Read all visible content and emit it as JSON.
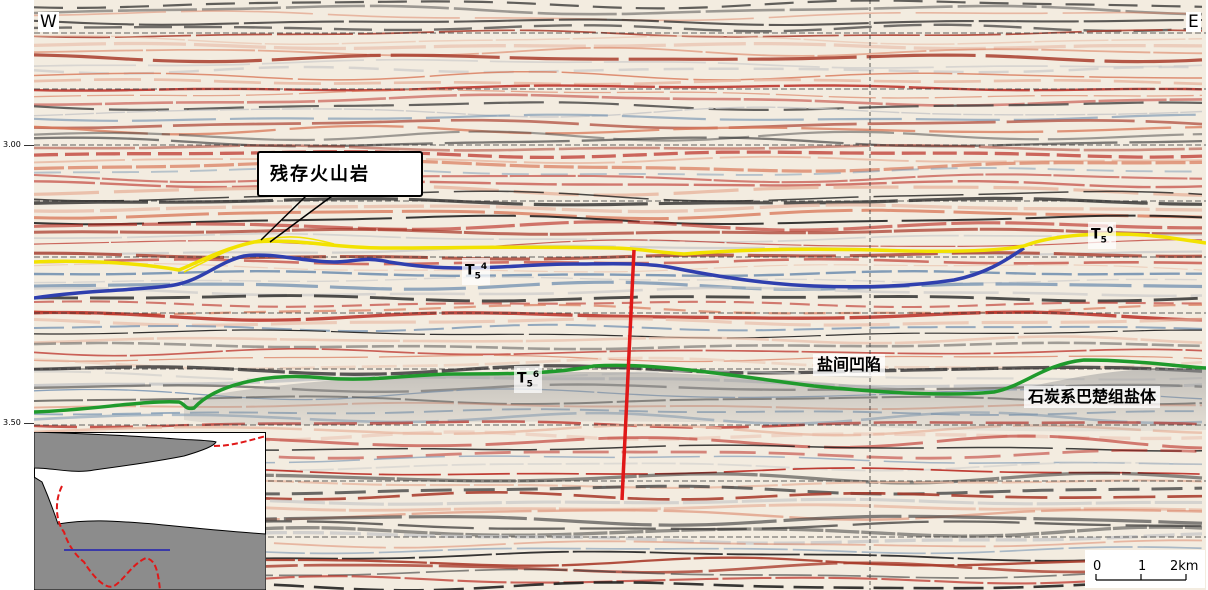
{
  "figure": {
    "direction_left": "W",
    "direction_right": "E",
    "depth_ticks": [
      "3.00",
      "3.50"
    ]
  },
  "horizons": [
    {
      "id": "T5-0",
      "base": "T",
      "sub": "5",
      "sup": "0",
      "color": "#f2e200"
    },
    {
      "id": "T5-4",
      "base": "T",
      "sub": "5",
      "sup": "4",
      "color": "#2f3fae"
    },
    {
      "id": "T5-6",
      "base": "T",
      "sub": "5",
      "sup": "6",
      "color": "#1f9a2c"
    }
  ],
  "fault_color": "#e01818",
  "annotations": {
    "callout": "残存火山岩",
    "salt_depression": "盐间凹陷",
    "salt_body": "石炭系巴楚组盐体"
  },
  "inset_map": {
    "land_color": "#8c8c8c",
    "boundary_color": "#e01818",
    "profile_color": "#3a3aa8"
  },
  "scale_bar": {
    "labels": [
      "0",
      "1",
      "2km"
    ]
  }
}
